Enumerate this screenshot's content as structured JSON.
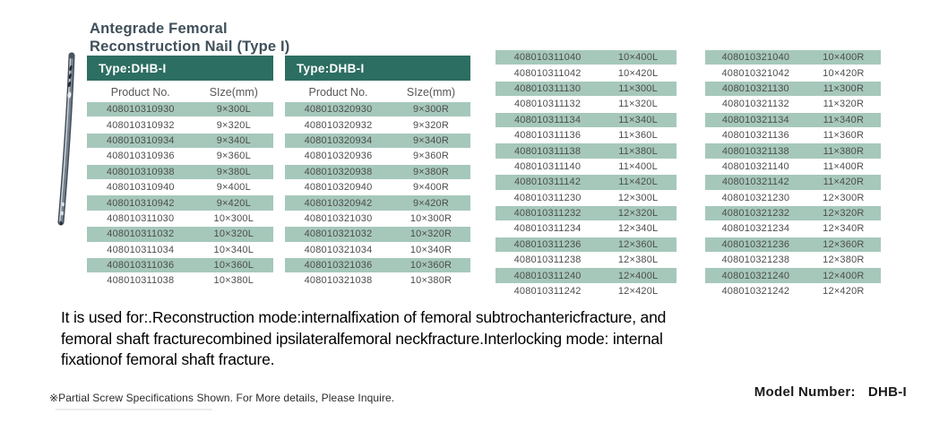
{
  "title": {
    "line1": "Antegrade Femoral",
    "line2": "Reconstruction Nail  (Type I)"
  },
  "tables": [
    {
      "header": "Type:DHB-I",
      "columns": [
        "Product No.",
        "SIze(mm)"
      ],
      "rows": [
        [
          "408010310930",
          "9×300L"
        ],
        [
          "408010310932",
          "9×320L"
        ],
        [
          "408010310934",
          "9×340L"
        ],
        [
          "408010310936",
          "9×360L"
        ],
        [
          "408010310938",
          "9×380L"
        ],
        [
          "408010310940",
          "9×400L"
        ],
        [
          "408010310942",
          "9×420L"
        ],
        [
          "408010311030",
          "10×300L"
        ],
        [
          "408010311032",
          "10×320L"
        ],
        [
          "408010311034",
          "10×340L"
        ],
        [
          "408010311036",
          "10×360L"
        ],
        [
          "408010311038",
          "10×380L"
        ]
      ]
    },
    {
      "header": "Type:DHB-I",
      "columns": [
        "Product No.",
        "SIze(mm)"
      ],
      "rows": [
        [
          "408010320930",
          "9×300R"
        ],
        [
          "408010320932",
          "9×320R"
        ],
        [
          "408010320934",
          "9×340R"
        ],
        [
          "408010320936",
          "9×360R"
        ],
        [
          "408010320938",
          "9×380R"
        ],
        [
          "408010320940",
          "9×400R"
        ],
        [
          "408010320942",
          "9×420R"
        ],
        [
          "408010321030",
          "10×300R"
        ],
        [
          "408010321032",
          "10×320R"
        ],
        [
          "408010321034",
          "10×340R"
        ],
        [
          "408010321036",
          "10×360R"
        ],
        [
          "408010321038",
          "10×380R"
        ]
      ]
    },
    {
      "rows": [
        [
          "408010311040",
          "10×400L"
        ],
        [
          "408010311042",
          "10×420L"
        ],
        [
          "408010311130",
          "11×300L"
        ],
        [
          "408010311132",
          "11×320L"
        ],
        [
          "408010311134",
          "11×340L"
        ],
        [
          "408010311136",
          "11×360L"
        ],
        [
          "408010311138",
          "11×380L"
        ],
        [
          "408010311140",
          "11×400L"
        ],
        [
          "408010311142",
          "11×420L"
        ],
        [
          "408010311230",
          "12×300L"
        ],
        [
          "408010311232",
          "12×320L"
        ],
        [
          "408010311234",
          "12×340L"
        ],
        [
          "408010311236",
          "12×360L"
        ],
        [
          "408010311238",
          "12×380L"
        ],
        [
          "408010311240",
          "12×400L"
        ],
        [
          "408010311242",
          "12×420L"
        ]
      ]
    },
    {
      "rows": [
        [
          "408010321040",
          "10×400R"
        ],
        [
          "408010321042",
          "10×420R"
        ],
        [
          "408010321130",
          "11×300R"
        ],
        [
          "408010321132",
          "11×320R"
        ],
        [
          "408010321134",
          "11×340R"
        ],
        [
          "408010321136",
          "11×360R"
        ],
        [
          "408010321138",
          "11×380R"
        ],
        [
          "408010321140",
          "11×400R"
        ],
        [
          "408010321142",
          "11×420R"
        ],
        [
          "408010321230",
          "12×300R"
        ],
        [
          "408010321232",
          "12×320R"
        ],
        [
          "408010321234",
          "12×340R"
        ],
        [
          "408010321236",
          "12×360R"
        ],
        [
          "408010321238",
          "12×380R"
        ],
        [
          "408010321240",
          "12×400R"
        ],
        [
          "408010321242",
          "12×420R"
        ]
      ]
    }
  ],
  "description": {
    "lines": [
      "It is used for:.Reconstruction mode:internalfixation of femoral subtrochantericfracture, and",
      "femoral shaft fracturecombined ipsilateralfemoral neckfracture.Interlocking mode: internal",
      "fixationof femoral shaft fracture."
    ]
  },
  "footnote": "※Partial Screw Specifications Shown. For More  details, Please Inquire.",
  "model": {
    "label": "Model  Number:",
    "value": "DHB-I"
  },
  "colors": {
    "header_bg": "#2d6e62",
    "row_shaded": "#a6c8bb",
    "title_text": "#40505a"
  }
}
